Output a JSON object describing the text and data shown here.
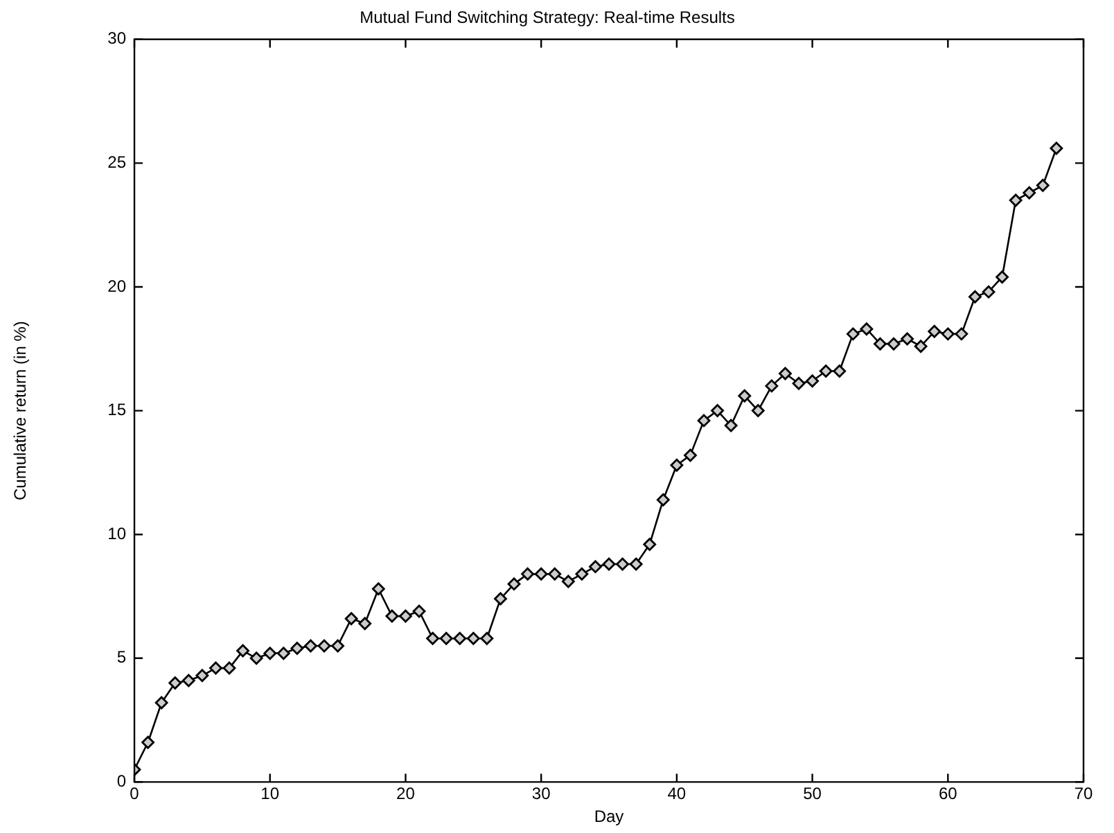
{
  "chart_data": {
    "type": "line",
    "title": "Mutual Fund Switching Strategy: Real-time Results",
    "xlabel": "Day",
    "ylabel": "Cumulative return (in %)",
    "x": [
      0,
      1,
      2,
      3,
      4,
      5,
      6,
      7,
      8,
      9,
      10,
      11,
      12,
      13,
      14,
      15,
      16,
      17,
      18,
      19,
      20,
      21,
      22,
      23,
      24,
      25,
      26,
      27,
      28,
      29,
      30,
      31,
      32,
      33,
      34,
      35,
      36,
      37,
      38,
      39,
      40,
      41,
      42,
      43,
      44,
      45,
      46,
      47,
      48,
      49,
      50,
      51,
      52,
      53,
      54,
      55,
      56,
      57,
      58,
      59,
      60,
      61,
      62,
      63,
      64,
      65,
      66,
      67,
      68
    ],
    "series": [
      {
        "color": "#000000",
        "values": [
          0.5,
          1.6,
          3.2,
          4.0,
          4.1,
          4.3,
          4.6,
          4.6,
          5.3,
          5.0,
          5.2,
          5.2,
          5.4,
          5.5,
          5.5,
          5.5,
          6.6,
          6.4,
          7.8,
          6.7,
          6.7,
          6.9,
          5.8,
          5.8,
          5.8,
          5.8,
          5.8,
          7.4,
          8.0,
          8.4,
          8.4,
          8.4,
          8.1,
          8.4,
          8.7,
          8.8,
          8.8,
          8.8,
          9.6,
          11.4,
          12.8,
          13.2,
          14.6,
          15.0,
          14.4,
          15.6,
          15.0,
          16.0,
          16.5,
          16.1,
          16.2,
          16.6,
          16.6,
          18.1,
          18.3,
          17.7,
          17.7,
          17.9,
          17.6,
          18.2,
          18.1,
          18.1,
          19.6,
          19.8,
          20.4,
          23.5,
          23.8,
          24.1,
          25.6
        ]
      }
    ],
    "xlim": [
      0,
      70
    ],
    "xticks": [
      0,
      10,
      20,
      30,
      40,
      50,
      60,
      70
    ],
    "ylim": [
      0,
      30
    ],
    "yticks": [
      0,
      5,
      10,
      15,
      20,
      25,
      30
    ],
    "grid": false,
    "legend": false,
    "marker": "diamond",
    "line_style": "solid"
  }
}
